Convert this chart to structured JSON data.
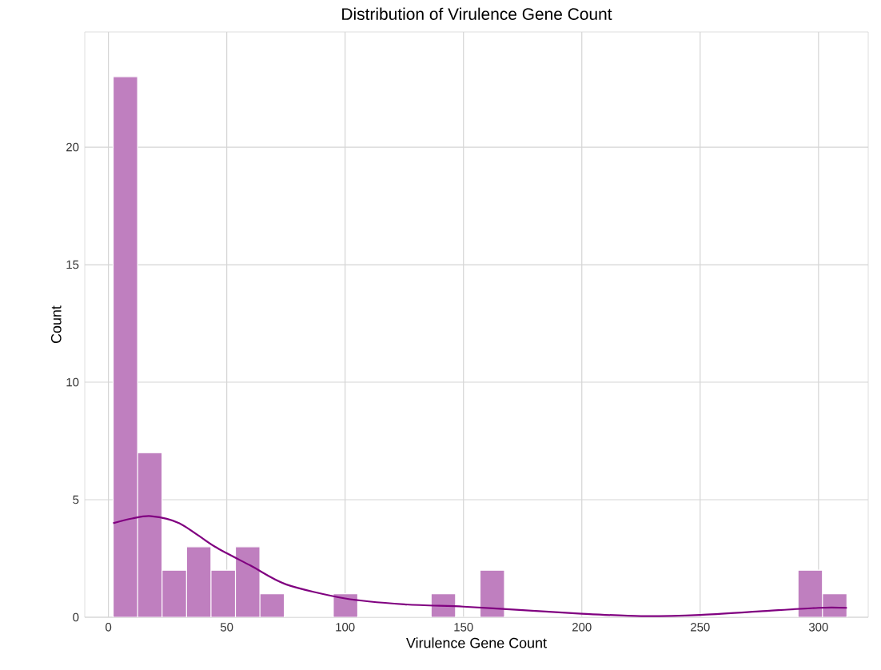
{
  "chart_data": {
    "type": "histogram",
    "title": "Distribution of Virulence Gene Count",
    "xlabel": "Virulence Gene Count",
    "ylabel": "Count",
    "xlim": [
      -10,
      321
    ],
    "ylim": [
      0,
      24.9
    ],
    "xticks": [
      0,
      50,
      100,
      150,
      200,
      250,
      300
    ],
    "yticks": [
      0,
      5,
      10,
      15,
      20
    ],
    "grid": true,
    "series": [
      {
        "color": "#bf7fbf",
        "bins": [
          2,
          12.33,
          22.67,
          33,
          43.33,
          53.67,
          64,
          74.33,
          84.67,
          95,
          105.33,
          115.67,
          126,
          136.33,
          146.67,
          157,
          167.33,
          177.67,
          188,
          198.33,
          208.67,
          219,
          229.33,
          239.67,
          250,
          260.33,
          270.67,
          281,
          291.33,
          301.67,
          312
        ],
        "values": [
          23,
          7,
          2,
          3,
          2,
          3,
          1,
          0,
          0,
          1,
          0,
          0,
          0,
          1,
          0,
          2,
          0,
          0,
          0,
          0,
          0,
          0,
          0,
          0,
          0,
          0,
          0,
          0,
          2,
          1
        ]
      },
      {
        "type": "line",
        "color": "#800080",
        "x": [
          2,
          10,
          18,
          30,
          45,
          60,
          75,
          100,
          125,
          150,
          175,
          200,
          225,
          250,
          275,
          300,
          312
        ],
        "values": [
          4.0,
          4.2,
          4.3,
          4.0,
          3.0,
          2.2,
          1.4,
          0.8,
          0.55,
          0.45,
          0.3,
          0.15,
          0.05,
          0.1,
          0.25,
          0.4,
          0.4
        ]
      }
    ]
  }
}
